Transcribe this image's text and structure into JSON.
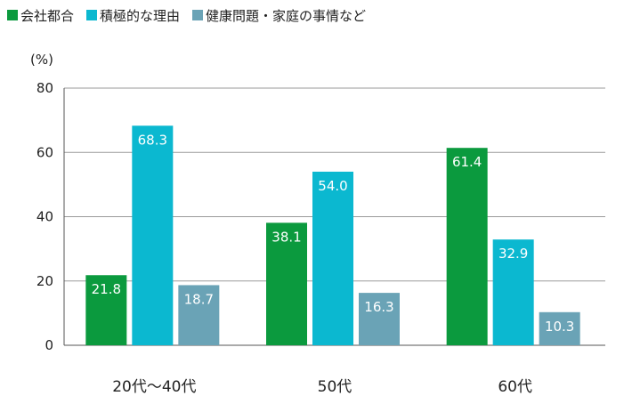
{
  "chart_data": {
    "type": "bar",
    "categories": [
      "20代〜40代",
      "50代",
      "60代"
    ],
    "series": [
      {
        "name": "会社都合",
        "color": "#0b9a3e",
        "values": [
          21.8,
          38.1,
          61.4
        ]
      },
      {
        "name": "積極的な理由",
        "color": "#0bb8d0",
        "values": [
          68.3,
          54.0,
          32.9
        ]
      },
      {
        "name": "健康問題・家庭の事情など",
        "color": "#6aa3b6",
        "values": [
          18.7,
          16.3,
          10.3
        ]
      }
    ],
    "value_labels": [
      [
        "21.8",
        "38.1",
        "61.4"
      ],
      [
        "68.3",
        "54.0",
        "32.9"
      ],
      [
        "18.7",
        "16.3",
        "10.3"
      ]
    ],
    "ylabel": "(%)",
    "ylim": [
      0,
      80
    ],
    "yticks": [
      "0",
      "20",
      "40",
      "60",
      "80"
    ],
    "grid": true,
    "legend_position": "top-left"
  }
}
